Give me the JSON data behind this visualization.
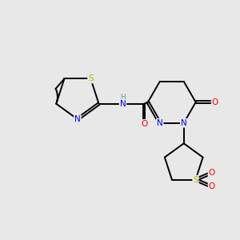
{
  "background_color": "#e8e8e8",
  "bond_color": "#000000",
  "atom_colors": {
    "S": "#b8b800",
    "N": "#0000ff",
    "O": "#ff0000",
    "H": "#5f9ea0",
    "C": "#000000"
  },
  "figsize": [
    3.0,
    3.0
  ],
  "dpi": 100
}
